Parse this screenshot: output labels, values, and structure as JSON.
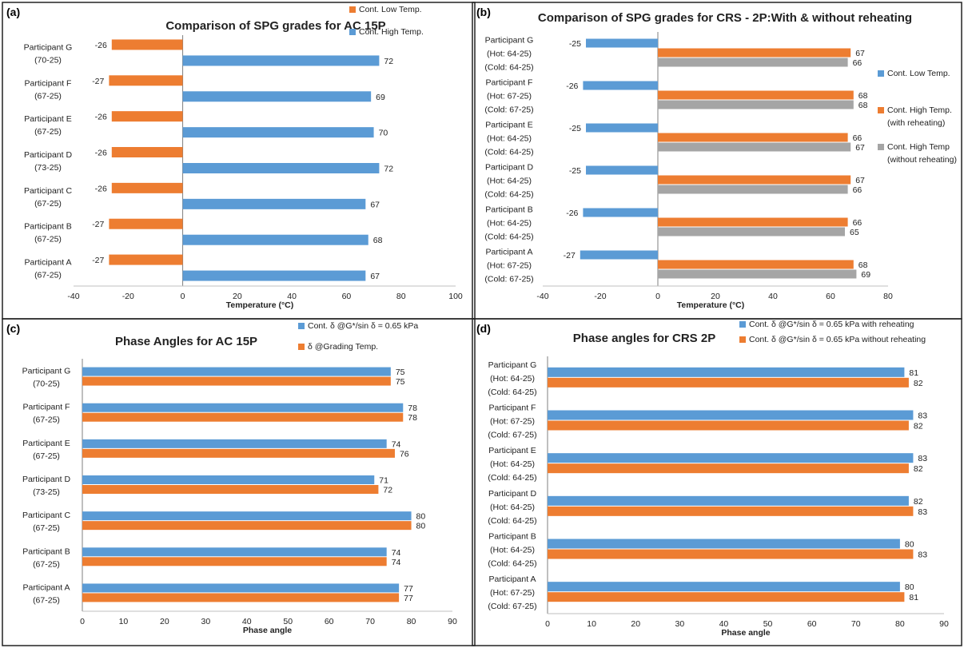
{
  "chart_data": [
    {
      "panel": "(a)",
      "type": "bar",
      "orientation": "horizontal",
      "title": "Comparison of SPG grades for AC 15P",
      "xlabel": "Temperature (°C)",
      "xlim": [
        -40,
        100
      ],
      "xticks": [
        -40,
        -20,
        0,
        20,
        40,
        60,
        80,
        100
      ],
      "legend_position": "top-right",
      "categories": [
        [
          "Participant  G",
          "(70-25)"
        ],
        [
          "Participant F",
          "(67-25)"
        ],
        [
          "Participant E",
          "(67-25)"
        ],
        [
          "Participant D",
          "(73-25)"
        ],
        [
          "Participant C",
          "(67-25)"
        ],
        [
          "Participant B",
          "(67-25)"
        ],
        [
          "Participant A",
          "(67-25)"
        ]
      ],
      "series": [
        {
          "name": "Cont. Low Temp.",
          "color": "#ED7D31",
          "values": [
            -26,
            -27,
            -26,
            -26,
            -26,
            -27,
            -27
          ]
        },
        {
          "name": "Cont. High Temp.",
          "color": "#5B9BD5",
          "values": [
            72,
            69,
            70,
            72,
            67,
            68,
            67
          ]
        }
      ],
      "legend_order": [
        0,
        1
      ]
    },
    {
      "panel": "(b)",
      "type": "bar",
      "orientation": "horizontal",
      "title": "Comparison of SPG grades for CRS - 2P:With & without reheating",
      "xlabel": "Temperature (°C)",
      "xlim": [
        -40,
        80
      ],
      "xticks": [
        -40,
        -20,
        0,
        20,
        40,
        60,
        80
      ],
      "legend_position": "right",
      "categories": [
        [
          "Participant G",
          "(Hot: 64-25)",
          "(Cold: 64-25)"
        ],
        [
          "Participant F",
          "(Hot: 67-25)",
          "(Cold: 67-25)"
        ],
        [
          "Participant E",
          "(Hot: 64-25)",
          "(Cold: 64-25)"
        ],
        [
          "Participant D",
          "(Hot: 64-25)",
          "(Cold: 64-25)"
        ],
        [
          "Participant B",
          "(Hot: 64-25)",
          "(Cold: 64-25)"
        ],
        [
          "Participant A",
          "(Hot: 67-25)",
          "(Cold: 67-25)"
        ]
      ],
      "series": [
        {
          "name": [
            "Cont. Low Temp."
          ],
          "color": "#5B9BD5",
          "values": [
            -25,
            -26,
            -25,
            -25,
            -26,
            -27
          ]
        },
        {
          "name": [
            "Cont. High Temp.",
            "(with reheating)"
          ],
          "color": "#ED7D31",
          "values": [
            67,
            68,
            66,
            67,
            66,
            68
          ]
        },
        {
          "name": [
            "Cont. High Temp",
            "(without reheating)"
          ],
          "color": "#A5A5A5",
          "values": [
            66,
            68,
            67,
            66,
            65,
            69
          ]
        }
      ],
      "legend_order": [
        0,
        1,
        2
      ]
    },
    {
      "panel": "(c)",
      "type": "bar",
      "orientation": "horizontal",
      "title": "Phase Angles for AC 15P",
      "xlabel": "Phase angle",
      "xlim": [
        0,
        90
      ],
      "xticks": [
        0,
        10,
        20,
        30,
        40,
        50,
        60,
        70,
        80,
        90
      ],
      "legend_position": "top-right",
      "categories": [
        [
          "Participant  G",
          "(70-25)"
        ],
        [
          "Participant F",
          "(67-25)"
        ],
        [
          "Participant E",
          "(67-25)"
        ],
        [
          "Participant D",
          "(73-25)"
        ],
        [
          "Participant C",
          "(67-25)"
        ],
        [
          "Participant B",
          "(67-25)"
        ],
        [
          "Participant A",
          "(67-25)"
        ]
      ],
      "series": [
        {
          "name": "Cont. δ @G*/sin δ = 0.65 kPa",
          "color": "#5B9BD5",
          "values": [
            75,
            78,
            74,
            71,
            80,
            74,
            77
          ]
        },
        {
          "name": "δ @Grading Temp.",
          "color": "#ED7D31",
          "values": [
            75,
            78,
            76,
            72,
            80,
            74,
            77
          ]
        }
      ],
      "legend_order": [
        0,
        1
      ]
    },
    {
      "panel": "(d)",
      "type": "bar",
      "orientation": "horizontal",
      "title": "Phase angles for CRS 2P",
      "xlabel": "Phase angle",
      "xlim": [
        0,
        90
      ],
      "xticks": [
        0,
        10,
        20,
        30,
        40,
        50,
        60,
        70,
        80,
        90
      ],
      "legend_position": "top-right",
      "categories": [
        [
          "Participant G",
          "(Hot: 64-25)",
          "(Cold: 64-25)"
        ],
        [
          "Participant F",
          "(Hot: 67-25)",
          "(Cold: 67-25)"
        ],
        [
          "Participant E",
          "(Hot: 64-25)",
          "(Cold: 64-25)"
        ],
        [
          "Participant D",
          "(Hot: 64-25)",
          "(Cold: 64-25)"
        ],
        [
          "Participant B",
          "(Hot: 64-25)",
          "(Cold: 64-25)"
        ],
        [
          "Participant A",
          "(Hot: 67-25)",
          "(Cold: 67-25)"
        ]
      ],
      "series": [
        {
          "name": "Cont. δ  @G*/sin δ = 0.65 kPa  with reheating",
          "color": "#5B9BD5",
          "values": [
            81,
            83,
            83,
            82,
            80,
            80
          ]
        },
        {
          "name": "Cont. δ  @G*/sin δ = 0.65 kPa  without reheating",
          "color": "#ED7D31",
          "values": [
            82,
            82,
            82,
            83,
            83,
            81
          ]
        }
      ],
      "legend_order": [
        0,
        1
      ]
    }
  ]
}
